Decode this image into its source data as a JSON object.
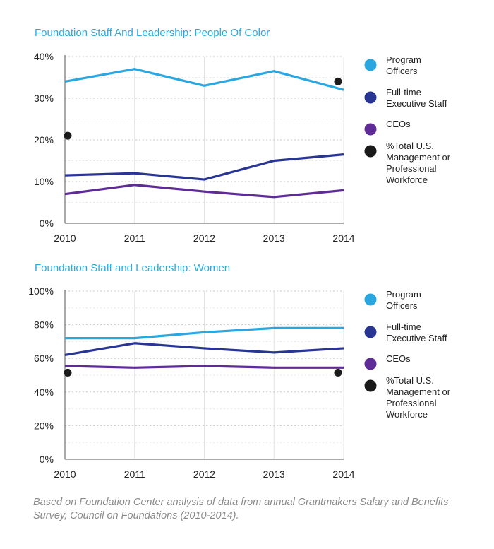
{
  "footnote": "Based on Foundation Center analysis of data from annual Grantmakers Salary and Benefits Survey, Council on Foundations (2010-2014).",
  "chart_data": [
    {
      "type": "line",
      "title": "Foundation Staff And Leadership: People Of Color",
      "x": [
        "2010",
        "2011",
        "2012",
        "2013",
        "2014"
      ],
      "ylim": [
        0,
        40
      ],
      "yticks": [
        0,
        10,
        20,
        30,
        40
      ],
      "ytick_labels": [
        "0%",
        "10%",
        "20%",
        "30%",
        "40%"
      ],
      "grid": "dotted horizontal",
      "legend_position": "right",
      "series": [
        {
          "name": "Program Officers",
          "color": "#2aa6e0",
          "values": [
            34,
            37,
            33,
            36.5,
            32
          ]
        },
        {
          "name": "Full-time Executive Staff",
          "color": "#283593",
          "values": [
            11.5,
            12,
            10.5,
            15,
            16.5
          ]
        },
        {
          "name": "CEOs",
          "color": "#5e2b97",
          "values": [
            7,
            9.2,
            7.6,
            6.3,
            7.9
          ]
        }
      ],
      "markers": {
        "name": "%Total U.S. Management or Professional Workforce",
        "color": "#1a1a1a",
        "points": [
          {
            "x": "2010",
            "y": 21
          },
          {
            "x": "2014",
            "y": 34
          }
        ]
      },
      "legend": [
        {
          "lines": [
            "Program",
            "Officers"
          ],
          "color": "#2aa6e0"
        },
        {
          "lines": [
            "Full-time",
            "Executive Staff"
          ],
          "color": "#283593"
        },
        {
          "lines": [
            "CEOs"
          ],
          "color": "#5e2b97"
        },
        {
          "lines": [
            "%Total U.S.",
            "Management or",
            "Professional",
            "Workforce"
          ],
          "color": "#1a1a1a"
        }
      ]
    },
    {
      "type": "line",
      "title": "Foundation Staff and Leadership: Women",
      "x": [
        "2010",
        "2011",
        "2012",
        "2013",
        "2014"
      ],
      "ylim": [
        0,
        100
      ],
      "yticks": [
        0,
        20,
        40,
        60,
        80,
        100
      ],
      "ytick_labels": [
        "0%",
        "20%",
        "40%",
        "60%",
        "80%",
        "100%"
      ],
      "grid": "dotted horizontal",
      "legend_position": "right",
      "series": [
        {
          "name": "Program Officers",
          "color": "#2aa6e0",
          "values": [
            72,
            72,
            75.5,
            78,
            78
          ]
        },
        {
          "name": "Full-time Executive Staff",
          "color": "#283593",
          "values": [
            62,
            69,
            66,
            63.5,
            66
          ]
        },
        {
          "name": "CEOs",
          "color": "#5e2b97",
          "values": [
            55.5,
            54.5,
            55.5,
            54.5,
            54.5
          ]
        }
      ],
      "markers": {
        "name": "%Total U.S. Management or Professional Workforce",
        "color": "#1a1a1a",
        "points": [
          {
            "x": "2010",
            "y": 51.5
          },
          {
            "x": "2014",
            "y": 51.5
          }
        ]
      },
      "legend": [
        {
          "lines": [
            "Program",
            "Officers"
          ],
          "color": "#2aa6e0"
        },
        {
          "lines": [
            "Full-time",
            "Executive Staff"
          ],
          "color": "#283593"
        },
        {
          "lines": [
            "CEOs"
          ],
          "color": "#5e2b97"
        },
        {
          "lines": [
            "%Total U.S.",
            "Management or",
            "Professional",
            "Workforce"
          ],
          "color": "#1a1a1a"
        }
      ]
    }
  ]
}
